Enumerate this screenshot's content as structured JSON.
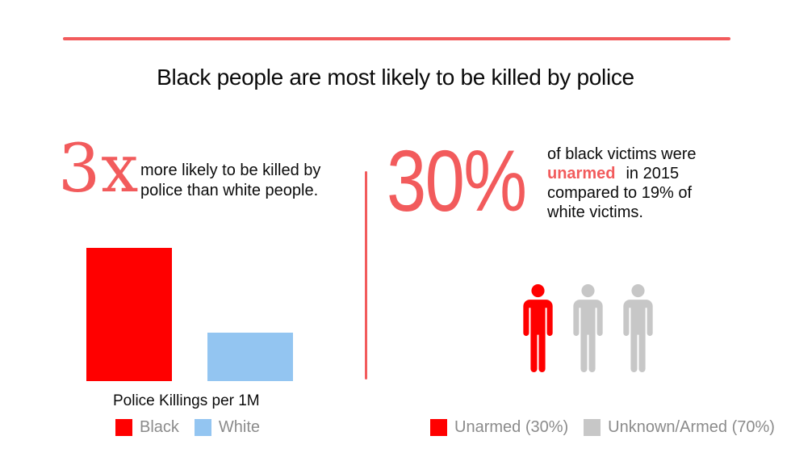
{
  "colors": {
    "accent_red": "#f25b5c",
    "pure_red": "#ff0000",
    "light_blue": "#93c5f1",
    "icon_gray": "#c7c7c7",
    "legend_text": "#8b8b8b"
  },
  "header": {
    "title": "Black people are most likely to be killed by police"
  },
  "left_section": {
    "stat": "3x",
    "desc_line1": "more likely to be killed by",
    "desc_line2": "police than white people.",
    "chart_label": "Police Killings per 1M",
    "legend": [
      {
        "label": "Black",
        "color": "#ff0000"
      },
      {
        "label": "White",
        "color": "#93c5f1"
      }
    ]
  },
  "right_section": {
    "stat": "30%",
    "desc_line1": "of black victims were",
    "desc_highlight": "unarmed",
    "desc_line2_rest": "in 2015",
    "desc_line3": "compared to 19% of",
    "desc_line4": "white victims.",
    "legend": [
      {
        "label": "Unarmed (30%)",
        "color": "#ff0000"
      },
      {
        "label": "Unknown/Armed (70%)",
        "color": "#c7c7c7"
      }
    ]
  },
  "chart_data": [
    {
      "type": "bar",
      "title": "Police Killings per 1M",
      "categories": [
        "Black",
        "White"
      ],
      "values": [
        2.75,
        1
      ],
      "ylim": [
        0,
        3
      ],
      "grid": false,
      "legend_position": "bottom",
      "colors": [
        "#ff0000",
        "#93c5f1"
      ],
      "note": "No numeric axis shown; bar heights are relative (headline states 3x)"
    },
    {
      "type": "pictograph",
      "categories": [
        "Unarmed",
        "Unknown/Armed"
      ],
      "values": [
        30,
        70
      ],
      "unit": "%",
      "icons_total": 3,
      "icons_highlighted": 1,
      "colors": [
        "#ff0000",
        "#c7c7c7"
      ],
      "legend_position": "bottom"
    }
  ]
}
